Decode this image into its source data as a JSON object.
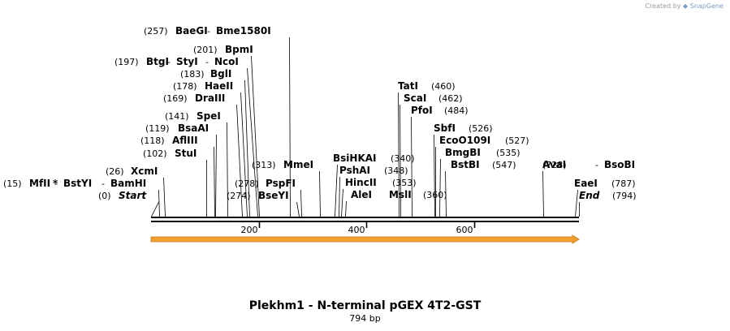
{
  "credit": {
    "prefix": "Created by",
    "brand": "SnapGene"
  },
  "map": {
    "title": "Plekhm1 - N-terminal pGEX 4T2-GST",
    "length_label": "794 bp",
    "length_bp": 794,
    "ticks": [
      "200",
      "400",
      "600"
    ],
    "feature_color": "#f0a030",
    "features": [
      {
        "name": "Plekhm1",
        "start": 1,
        "end": 794,
        "direction": "forward"
      }
    ],
    "labels": [
      {
        "id": "start",
        "items": [
          {
            "pos": "(0)",
            "name": "Start",
            "italic": true,
            "bp": 0
          }
        ]
      },
      {
        "id": "mfii",
        "items": [
          {
            "pos": "(15)",
            "name": "MfII",
            "star": "*",
            "bp": 15
          },
          {
            "name": "BstYI",
            "bp": 15
          },
          {
            "name": "BamHI",
            "bp": 15
          }
        ]
      },
      {
        "id": "xcmi",
        "items": [
          {
            "pos": "(26)",
            "name": "XcmI",
            "bp": 26
          }
        ]
      },
      {
        "id": "stui",
        "items": [
          {
            "pos": "(102)",
            "name": "StuI",
            "bp": 102
          }
        ]
      },
      {
        "id": "afliii",
        "items": [
          {
            "pos": "(118)",
            "name": "AflIII",
            "bp": 118
          }
        ]
      },
      {
        "id": "bsaai",
        "items": [
          {
            "pos": "(119)",
            "name": "BsaAI",
            "bp": 119
          }
        ]
      },
      {
        "id": "spei",
        "items": [
          {
            "pos": "(141)",
            "name": "SpeI",
            "bp": 141
          }
        ]
      },
      {
        "id": "draiii",
        "items": [
          {
            "pos": "(169)",
            "name": "DraIII",
            "bp": 169
          }
        ]
      },
      {
        "id": "haeii",
        "items": [
          {
            "pos": "(178)",
            "name": "HaeII",
            "bp": 178
          }
        ]
      },
      {
        "id": "bgli",
        "items": [
          {
            "pos": "(183)",
            "name": "BglI",
            "bp": 183
          }
        ]
      },
      {
        "id": "btgi",
        "items": [
          {
            "pos": "(197)",
            "name": "BtgI",
            "bp": 197
          },
          {
            "name": "StyI",
            "bp": 197
          },
          {
            "name": "NcoI",
            "bp": 197
          }
        ]
      },
      {
        "id": "bpmi",
        "items": [
          {
            "pos": "(201)",
            "name": "BpmI",
            "bp": 201
          }
        ]
      },
      {
        "id": "baegi",
        "items": [
          {
            "pos": "(257)",
            "name": "BaeGI",
            "bp": 257
          },
          {
            "name": "Bme1580I",
            "bp": 257
          }
        ]
      },
      {
        "id": "bseyi",
        "items": [
          {
            "pos": "(274)",
            "name": "BseYI",
            "bp": 274
          }
        ]
      },
      {
        "id": "pspfi",
        "items": [
          {
            "pos": "(278)",
            "name": "PspFI",
            "bp": 278
          }
        ]
      },
      {
        "id": "mmei",
        "items": [
          {
            "pos": "(313)",
            "name": "MmeI",
            "bp": 313
          }
        ]
      },
      {
        "id": "bsihkai",
        "items": [
          {
            "name": "BsiHKAI",
            "pos": "(340)",
            "bp": 340
          }
        ]
      },
      {
        "id": "pshai",
        "items": [
          {
            "name": "PshAI",
            "pos": "(348)",
            "bp": 348
          }
        ]
      },
      {
        "id": "hincii",
        "items": [
          {
            "name": "HincII",
            "pos": "(353)",
            "bp": 353
          }
        ]
      },
      {
        "id": "alei",
        "items": [
          {
            "name": "AleI",
            "bp": 360
          },
          {
            "name": "MslI",
            "bp": 360,
            "pos": "(360)"
          }
        ]
      },
      {
        "id": "tati",
        "items": [
          {
            "name": "TatI",
            "pos": "(460)",
            "bp": 460
          }
        ]
      },
      {
        "id": "scai",
        "items": [
          {
            "name": "ScaI",
            "pos": "(462)",
            "bp": 462
          }
        ]
      },
      {
        "id": "pfoi",
        "items": [
          {
            "name": "PfoI",
            "pos": "(484)",
            "bp": 484
          }
        ]
      },
      {
        "id": "sbfi",
        "items": [
          {
            "name": "SbfI",
            "pos": "(526)",
            "bp": 526
          }
        ]
      },
      {
        "id": "ecoo109i",
        "items": [
          {
            "name": "EcoO109I",
            "pos": "(527)",
            "bp": 527
          }
        ]
      },
      {
        "id": "bmgbi",
        "items": [
          {
            "name": "BmgBI",
            "pos": "(535)",
            "bp": 535
          }
        ]
      },
      {
        "id": "bstbi",
        "items": [
          {
            "name": "BstBI",
            "pos": "(547)",
            "bp": 547
          }
        ]
      },
      {
        "id": "avai",
        "items": [
          {
            "name": "AvaI",
            "bp": 728
          },
          {
            "name": "BsoBI",
            "bp": 728
          },
          {
            "pos": "(728)"
          }
        ]
      },
      {
        "id": "eaei",
        "items": [
          {
            "name": "EaeI",
            "pos": "(787)",
            "bp": 787
          }
        ]
      },
      {
        "id": "end",
        "items": [
          {
            "name": "End",
            "italic": true,
            "pos": "(794)",
            "bp": 794
          }
        ]
      }
    ]
  }
}
